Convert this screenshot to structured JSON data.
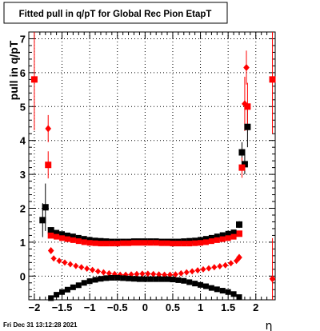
{
  "chart_data": {
    "type": "scatter",
    "title": "Fitted pull in q/pT for Global Rec Pion EtapT",
    "xlabel": "η",
    "ylabel": "pull in q/pT",
    "xlim": [
      -2.1,
      2.35
    ],
    "ylim": [
      -0.7,
      7.2
    ],
    "grid": true,
    "xticks": [
      -2,
      -1.5,
      -1,
      -0.5,
      0,
      0.5,
      1,
      1.5,
      2
    ],
    "xtick_labels": [
      "−2",
      "−1.5",
      "−1",
      "−0.5",
      "0",
      "0.5",
      "1",
      "1.5",
      "2"
    ],
    "yticks": [
      0,
      1,
      2,
      3,
      4,
      5,
      6,
      7
    ],
    "ytick_labels": [
      "0",
      "1",
      "2",
      "3",
      "4",
      "5",
      "6",
      "7"
    ],
    "timestamp": "Fri Dec 31 13:12:28 2021",
    "series": [
      {
        "color": "#000000",
        "marker": "square",
        "points": [
          {
            "x": -1.85,
            "y": 1.65,
            "err": 0.5
          },
          {
            "x": -1.8,
            "y": 2.03,
            "err": 0.7
          },
          {
            "x": -1.7,
            "y": 1.35,
            "err": 0.05
          },
          {
            "x": 1.7,
            "y": 1.52,
            "err": 0.1
          },
          {
            "x": 1.75,
            "y": 3.65,
            "err": 0.3
          },
          {
            "x": 1.8,
            "y": 3.3,
            "err": 0.3
          },
          {
            "x": 1.85,
            "y": 4.4,
            "err": 0.6
          }
        ]
      },
      {
        "color": "#ff0000",
        "marker": "square",
        "points": [
          {
            "x": -2.0,
            "y": 5.8,
            "err": 1.5
          },
          {
            "x": -1.75,
            "y": 3.28,
            "err": 0.4
          },
          {
            "x": -1.7,
            "y": 1.2,
            "err": 0.05
          },
          {
            "x": 1.7,
            "y": 1.25,
            "err": 0.05
          },
          {
            "x": 1.75,
            "y": 3.2,
            "err": 0.3
          },
          {
            "x": 1.85,
            "y": 5.0,
            "err": 0.7
          },
          {
            "x": 2.3,
            "y": 5.8,
            "err": 1.6
          }
        ]
      },
      {
        "color": "#ff0000",
        "marker": "diamond",
        "points": [
          {
            "x": -1.75,
            "y": 4.35,
            "err": 0.4
          },
          {
            "x": -1.7,
            "y": 0.75,
            "err": 0.05
          },
          {
            "x": 1.7,
            "y": 0.55,
            "err": 0.05
          },
          {
            "x": 1.8,
            "y": 5.08,
            "err": 0.8
          },
          {
            "x": 1.83,
            "y": 6.15,
            "err": 0.5
          },
          {
            "x": 2.3,
            "y": -0.08,
            "err": 1.2
          }
        ]
      },
      {
        "color": "#000000",
        "marker": "square-band",
        "x": [
          -1.7,
          -1.6,
          -1.5,
          -1.4,
          -1.3,
          -1.2,
          -1.1,
          -1.0,
          -0.9,
          -0.8,
          -0.7,
          -0.6,
          -0.5,
          -0.4,
          -0.3,
          -0.2,
          -0.1,
          0,
          0.1,
          0.2,
          0.3,
          0.4,
          0.5,
          0.6,
          0.7,
          0.8,
          0.9,
          1.0,
          1.1,
          1.2,
          1.3,
          1.4,
          1.5,
          1.6
        ],
        "y": [
          1.32,
          1.28,
          1.24,
          1.2,
          1.17,
          1.13,
          1.1,
          1.07,
          1.05,
          1.04,
          1.03,
          1.02,
          1.02,
          1.02,
          1.02,
          1.03,
          1.03,
          1.03,
          1.03,
          1.03,
          1.02,
          1.02,
          1.02,
          1.02,
          1.03,
          1.04,
          1.05,
          1.07,
          1.1,
          1.13,
          1.17,
          1.21,
          1.25,
          1.29
        ]
      },
      {
        "color": "#ff0000",
        "marker": "square-band",
        "x": [
          -1.7,
          -1.6,
          -1.5,
          -1.4,
          -1.3,
          -1.2,
          -1.1,
          -1.0,
          -0.9,
          -0.8,
          -0.7,
          -0.6,
          -0.5,
          -0.4,
          -0.3,
          -0.2,
          -0.1,
          0,
          0.1,
          0.2,
          0.3,
          0.4,
          0.5,
          0.6,
          0.7,
          0.8,
          0.9,
          1.0,
          1.1,
          1.2,
          1.3,
          1.4,
          1.5,
          1.6
        ],
        "y": [
          1.2,
          1.16,
          1.12,
          1.09,
          1.06,
          1.03,
          1.0,
          0.98,
          0.97,
          0.96,
          0.96,
          0.96,
          0.96,
          0.97,
          0.97,
          0.98,
          0.98,
          0.98,
          0.98,
          0.98,
          0.97,
          0.97,
          0.96,
          0.96,
          0.96,
          0.96,
          0.97,
          0.98,
          1.0,
          1.03,
          1.06,
          1.09,
          1.12,
          1.16
        ]
      },
      {
        "color": "#ff0000",
        "marker": "diamond-band",
        "x": [
          -1.65,
          -1.55,
          -1.45,
          -1.35,
          -1.25,
          -1.15,
          -1.05,
          -0.95,
          -0.85,
          -0.75,
          -0.65,
          -0.55,
          -0.45,
          -0.35,
          -0.25,
          -0.15,
          -0.05,
          0.05,
          0.15,
          0.25,
          0.35,
          0.45,
          0.55,
          0.65,
          0.75,
          0.85,
          0.95,
          1.05,
          1.15,
          1.25,
          1.35,
          1.45,
          1.55,
          1.65
        ],
        "y": [
          0.52,
          0.45,
          0.4,
          0.35,
          0.3,
          0.26,
          0.22,
          0.18,
          0.14,
          0.11,
          0.08,
          0.06,
          0.04,
          0.04,
          0.05,
          0.06,
          0.07,
          0.07,
          0.06,
          0.05,
          0.04,
          0.04,
          0.05,
          0.08,
          0.11,
          0.14,
          0.17,
          0.2,
          0.23,
          0.26,
          0.29,
          0.32,
          0.38,
          0.45
        ]
      },
      {
        "color": "#000000",
        "marker": "square-band",
        "x": [
          -1.7,
          -1.6,
          -1.5,
          -1.4,
          -1.3,
          -1.2,
          -1.1,
          -1.0,
          -0.9,
          -0.8,
          -0.7,
          -0.6,
          -0.5,
          -0.4,
          -0.3,
          -0.2,
          -0.1,
          0,
          0.1,
          0.2,
          0.3,
          0.4,
          0.5,
          0.6,
          0.7,
          0.8,
          0.9,
          1.0,
          1.1,
          1.2,
          1.3,
          1.4,
          1.5,
          1.6,
          1.7
        ],
        "y": [
          -0.65,
          -0.55,
          -0.47,
          -0.4,
          -0.33,
          -0.27,
          -0.2,
          -0.15,
          -0.11,
          -0.08,
          -0.06,
          -0.05,
          -0.05,
          -0.06,
          -0.07,
          -0.08,
          -0.09,
          -0.09,
          -0.09,
          -0.09,
          -0.09,
          -0.09,
          -0.1,
          -0.12,
          -0.14,
          -0.18,
          -0.22,
          -0.26,
          -0.3,
          -0.35,
          -0.39,
          -0.43,
          -0.47,
          -0.53,
          -0.62
        ]
      }
    ]
  }
}
